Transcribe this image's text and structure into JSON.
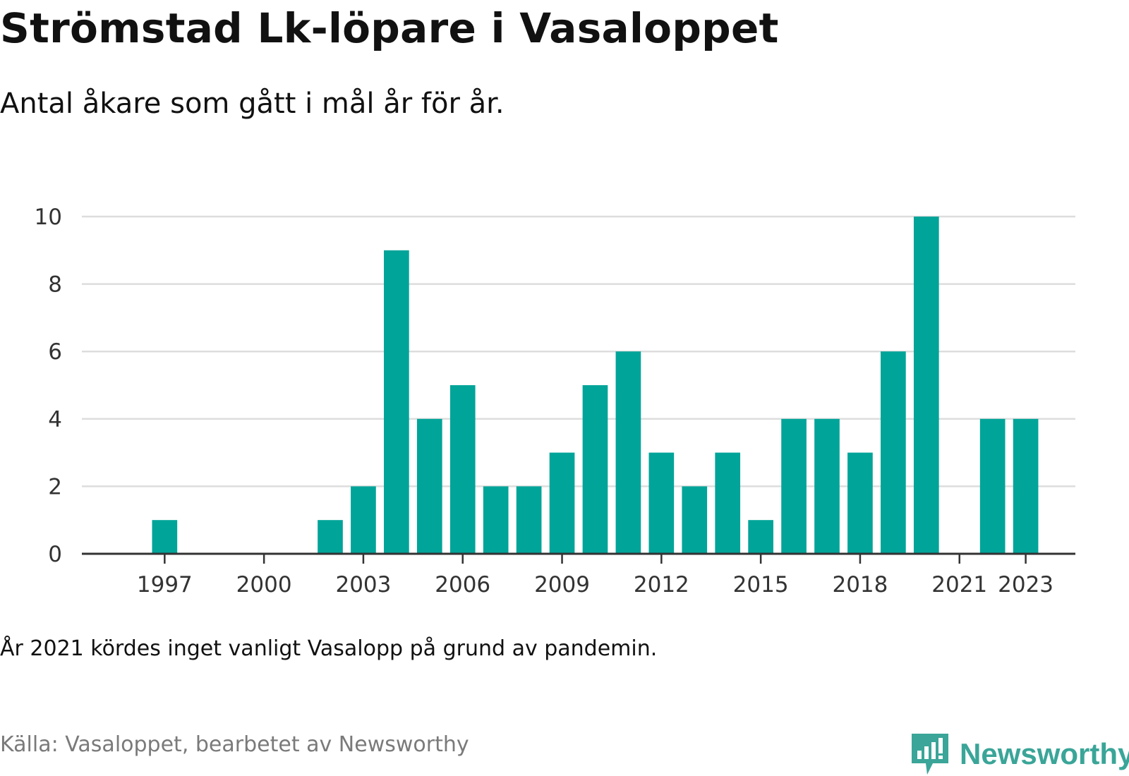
{
  "title": "Strömstad Lk-löpare i Vasaloppet",
  "subtitle": "Antal åkare som gått i mål år för år.",
  "note": "År 2021 kördes inget vanligt Vasalopp på grund av pandemin.",
  "source": "Källa: Vasaloppet, bearbetet av Newsworthy",
  "brand": {
    "name": "Newsworthy",
    "icon": "newsworthy-logo-icon",
    "color": "#3aa598"
  },
  "colors": {
    "bar": "#00a499",
    "grid": "#dddddd",
    "axis": "#333333"
  },
  "chart_data": {
    "type": "bar",
    "title": "Strömstad Lk-löpare i Vasaloppet",
    "subtitle": "Antal åkare som gått i mål år för år.",
    "xlabel": "",
    "ylabel": "",
    "x_range": [
      1995,
      2024
    ],
    "ylim": [
      0,
      10
    ],
    "y_ticks": [
      0,
      2,
      4,
      6,
      8,
      10
    ],
    "x_ticks": [
      1997,
      2000,
      2003,
      2006,
      2009,
      2012,
      2015,
      2018,
      2021,
      2023
    ],
    "grid": true,
    "legend": "none",
    "categories": [
      1997,
      1998,
      1999,
      2000,
      2001,
      2002,
      2003,
      2004,
      2005,
      2006,
      2007,
      2008,
      2009,
      2010,
      2011,
      2012,
      2013,
      2014,
      2015,
      2016,
      2017,
      2018,
      2019,
      2020,
      2021,
      2022,
      2023
    ],
    "values": [
      1,
      0,
      0,
      0,
      0,
      1,
      2,
      9,
      4,
      5,
      2,
      2,
      3,
      5,
      6,
      3,
      2,
      3,
      1,
      4,
      4,
      3,
      6,
      10,
      0,
      4,
      4
    ]
  }
}
